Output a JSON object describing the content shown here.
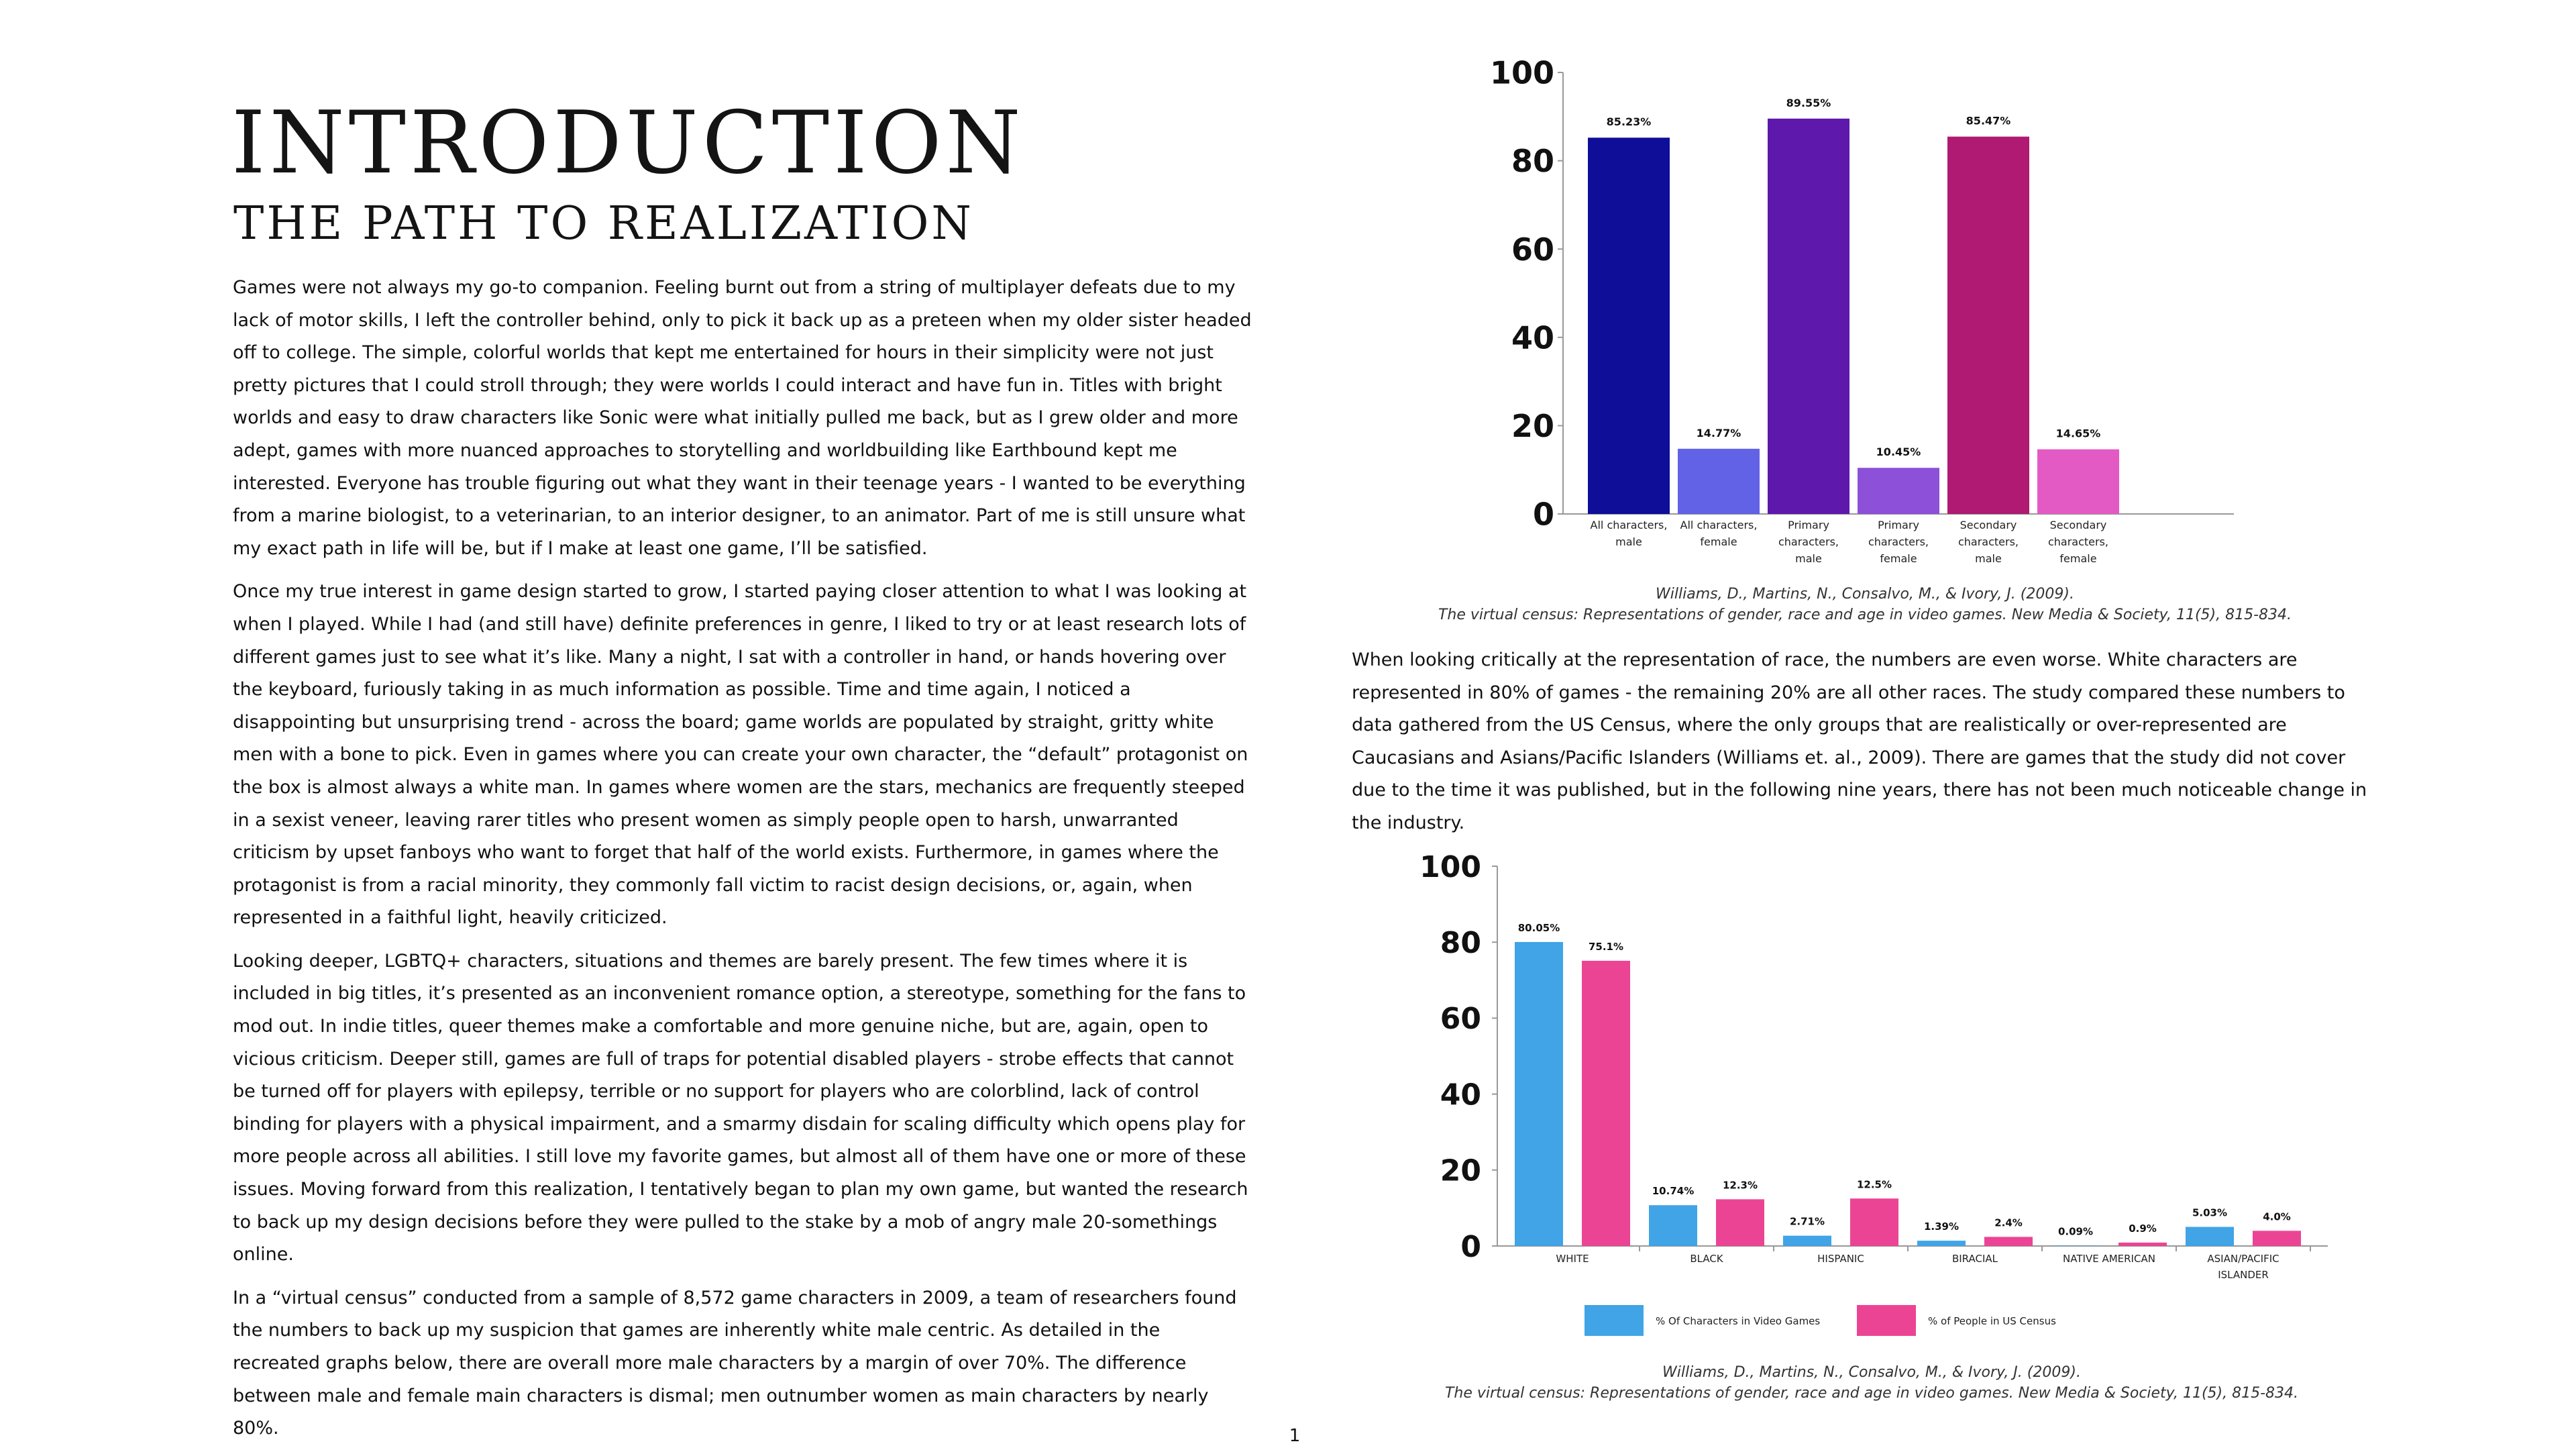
{
  "title": "INTRODUCTION",
  "subtitle": "THE PATH TO REALIZATION",
  "paragraphs": [
    "Games were not always my go-to companion. Feeling burnt out from a string of multiplayer defeats due to my lack of motor skills, I left the controller behind, only to pick it back up as a preteen when my older sister headed off to college. The simple, colorful worlds that kept me entertained for hours in their simplicity were not just pretty pictures that I could stroll through; they were worlds I could interact and have fun in. Titles with bright worlds and easy to draw characters like Sonic were what initially pulled me back, but as I grew older and more adept, games with more nuanced approaches to storytelling and worldbuilding like Earthbound kept me interested. Everyone has trouble figuring out what they want in their teenage years - I wanted to be everything from a marine biologist, to a veterinarian, to an interior designer, to an animator. Part of me is still unsure what my exact path in life will be, but if I make at least one game, I’ll be satisfied.",
    "Once my true interest in game design started to grow, I started paying closer attention to what I was looking at when I played. While I had (and still have) definite preferences in genre, I liked to try or at least research lots of different games just to see what it’s like. Many a night, I sat with a controller in hand, or hands hovering over the keyboard, furiously taking in as much information as possible. Time and time again, I noticed a disappointing but unsurprising trend - across the board; game worlds are populated by straight, gritty white men with a bone to pick. Even in games where you can create your own character, the “default” protagonist on the box is almost always a white man. In games where women are the stars, mechanics are frequently steeped in a sexist veneer, leaving rarer titles who present women as simply people open to harsh, unwarranted criticism by upset fanboys who want to forget that half of the world exists. Furthermore, in games where the protagonist is from a racial minority, they commonly fall victim to racist design decisions, or, again, when represented in a faithful light, heavily criticized.",
    "Looking deeper, LGBTQ+ characters, situations and themes are barely present. The few times where it is included in big titles, it’s presented as an inconvenient romance option, a stereotype, something for the fans to mod out. In indie titles, queer themes make a comfortable and more genuine niche, but are, again, open to vicious criticism. Deeper still, games are full of traps for potential disabled players - strobe effects that cannot be turned off for players with epilepsy, terrible or no support for players who are colorblind, lack of control binding for players with a physical impairment, and a smarmy disdain for scaling difficulty which opens play for more people across all abilities. I still love my favorite games, but almost all of them have one or more of these issues. Moving forward from this realization, I tentatively began to plan my own game, but wanted the research to back up my design decisions before they were pulled to the stake by a mob of angry male 20-somethings online.",
    "In a “virtual census” conducted from a sample of 8,572 game characters in 2009, a team of researchers found the numbers to back up my suspicion that games are inherently white male centric. As detailed in the recreated graphs below, there are overall more male characters by a margin of over 70%. The difference between male and female main characters is dismal; men outnumber women as main characters by nearly 80%."
  ],
  "right_paragraph": "When looking critically at the representation of race, the numbers are even worse. White characters are represented in 80% of games - the remaining 20% are all other races. The study compared these numbers to data gathered from the US Census, where the only groups that are realistically or over-represented are Caucasians and Asians/Pacific Islanders (Williams et. al., 2009). There are games that the study did not cover due to the time it was published, but in the following nine years, there has not been much noticeable change in the industry.",
  "citations": [
    {
      "line1": "Williams, D., Martins, N., Consalvo, M., & Ivory, J. (2009).",
      "line2": "The virtual census: Representations of gender, race and age in video games. New Media & Society, 11(5), 815-834."
    },
    {
      "line1": "Williams, D., Martins, N., Consalvo, M., & Ivory, J. (2009).",
      "line2": "The virtual census: Representations of gender, race and age in video games. New Media & Society, 11(5), 815-834."
    }
  ],
  "page_number": "1",
  "chart_data": [
    {
      "type": "bar",
      "categories": [
        [
          "All characters,",
          "male"
        ],
        [
          "All characters,",
          "female"
        ],
        [
          "Primary",
          "characters,",
          "male"
        ],
        [
          "Primary",
          "characters,",
          "female"
        ],
        [
          "Secondary",
          "characters,",
          "male"
        ],
        [
          "Secondary",
          "characters,",
          "female"
        ]
      ],
      "values": [
        85.23,
        14.77,
        89.55,
        10.45,
        85.47,
        14.65
      ],
      "value_labels": [
        "85.23%",
        "14.77%",
        "89.55%",
        "10.45%",
        "85.47%",
        "14.65%"
      ],
      "colors": [
        "#0e0e98",
        "#6262e6",
        "#5e18ac",
        "#8d50d8",
        "#b01a72",
        "#e45ac4"
      ],
      "yticks": [
        "0",
        "20",
        "40",
        "60",
        "80",
        "100"
      ],
      "ylim": [
        0,
        100
      ],
      "grid": false,
      "title": "",
      "xlabel": "",
      "ylabel": ""
    },
    {
      "type": "bar",
      "categories": [
        [
          "WHITE"
        ],
        [
          "BLACK"
        ],
        [
          "HISPANIC"
        ],
        [
          "BIRACIAL"
        ],
        [
          "NATIVE AMERICAN"
        ],
        [
          "ASIAN/PACIFIC",
          "ISLANDER"
        ]
      ],
      "series": [
        {
          "name": "% Of Characters in Video Games",
          "values": [
            80.05,
            10.74,
            2.71,
            1.39,
            0.09,
            5.03
          ],
          "value_labels": [
            "80.05%",
            "10.74%",
            "2.71%",
            "1.39%",
            "0.09%",
            "5.03%"
          ],
          "color": "#40a4e6"
        },
        {
          "name": "% of People in US Census",
          "values": [
            75.1,
            12.3,
            12.5,
            2.4,
            0.9,
            4.0
          ],
          "value_labels": [
            "75.1%",
            "12.3%",
            "12.5%",
            "2.4%",
            "0.9%",
            "4.0%"
          ],
          "color": "#ec4494"
        }
      ],
      "yticks": [
        "0",
        "20",
        "40",
        "60",
        "80",
        "100"
      ],
      "ylim": [
        0,
        100
      ],
      "grid": false,
      "legend": "bottom",
      "title": "",
      "xlabel": "",
      "ylabel": ""
    }
  ]
}
